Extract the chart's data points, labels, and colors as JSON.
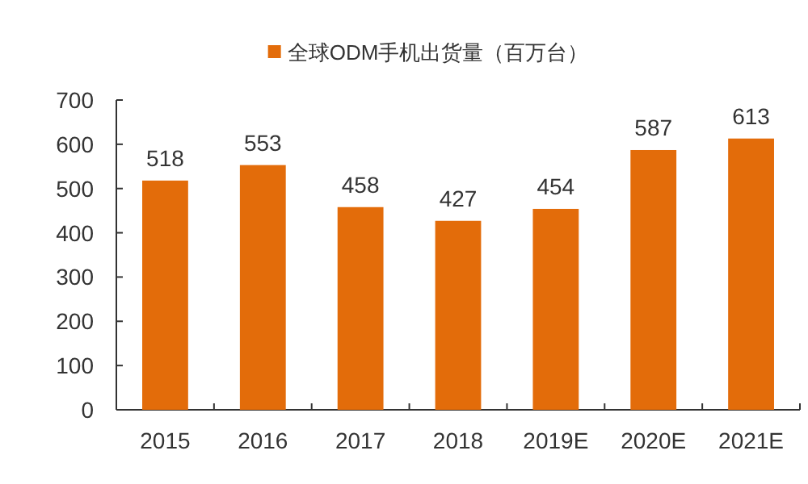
{
  "chart_data": {
    "type": "bar",
    "categories": [
      "2015",
      "2016",
      "2017",
      "2018",
      "2019E",
      "2020E",
      "2021E"
    ],
    "series": [
      {
        "name": "全球ODM手机出货量（百万台）",
        "color": "#e36c0a",
        "values": [
          518,
          553,
          458,
          427,
          454,
          587,
          613
        ]
      }
    ],
    "ylim": [
      0,
      700
    ],
    "yticks": [
      0,
      100,
      200,
      300,
      400,
      500,
      600,
      700
    ],
    "data_labels": true,
    "grid": false,
    "legend": "top"
  }
}
